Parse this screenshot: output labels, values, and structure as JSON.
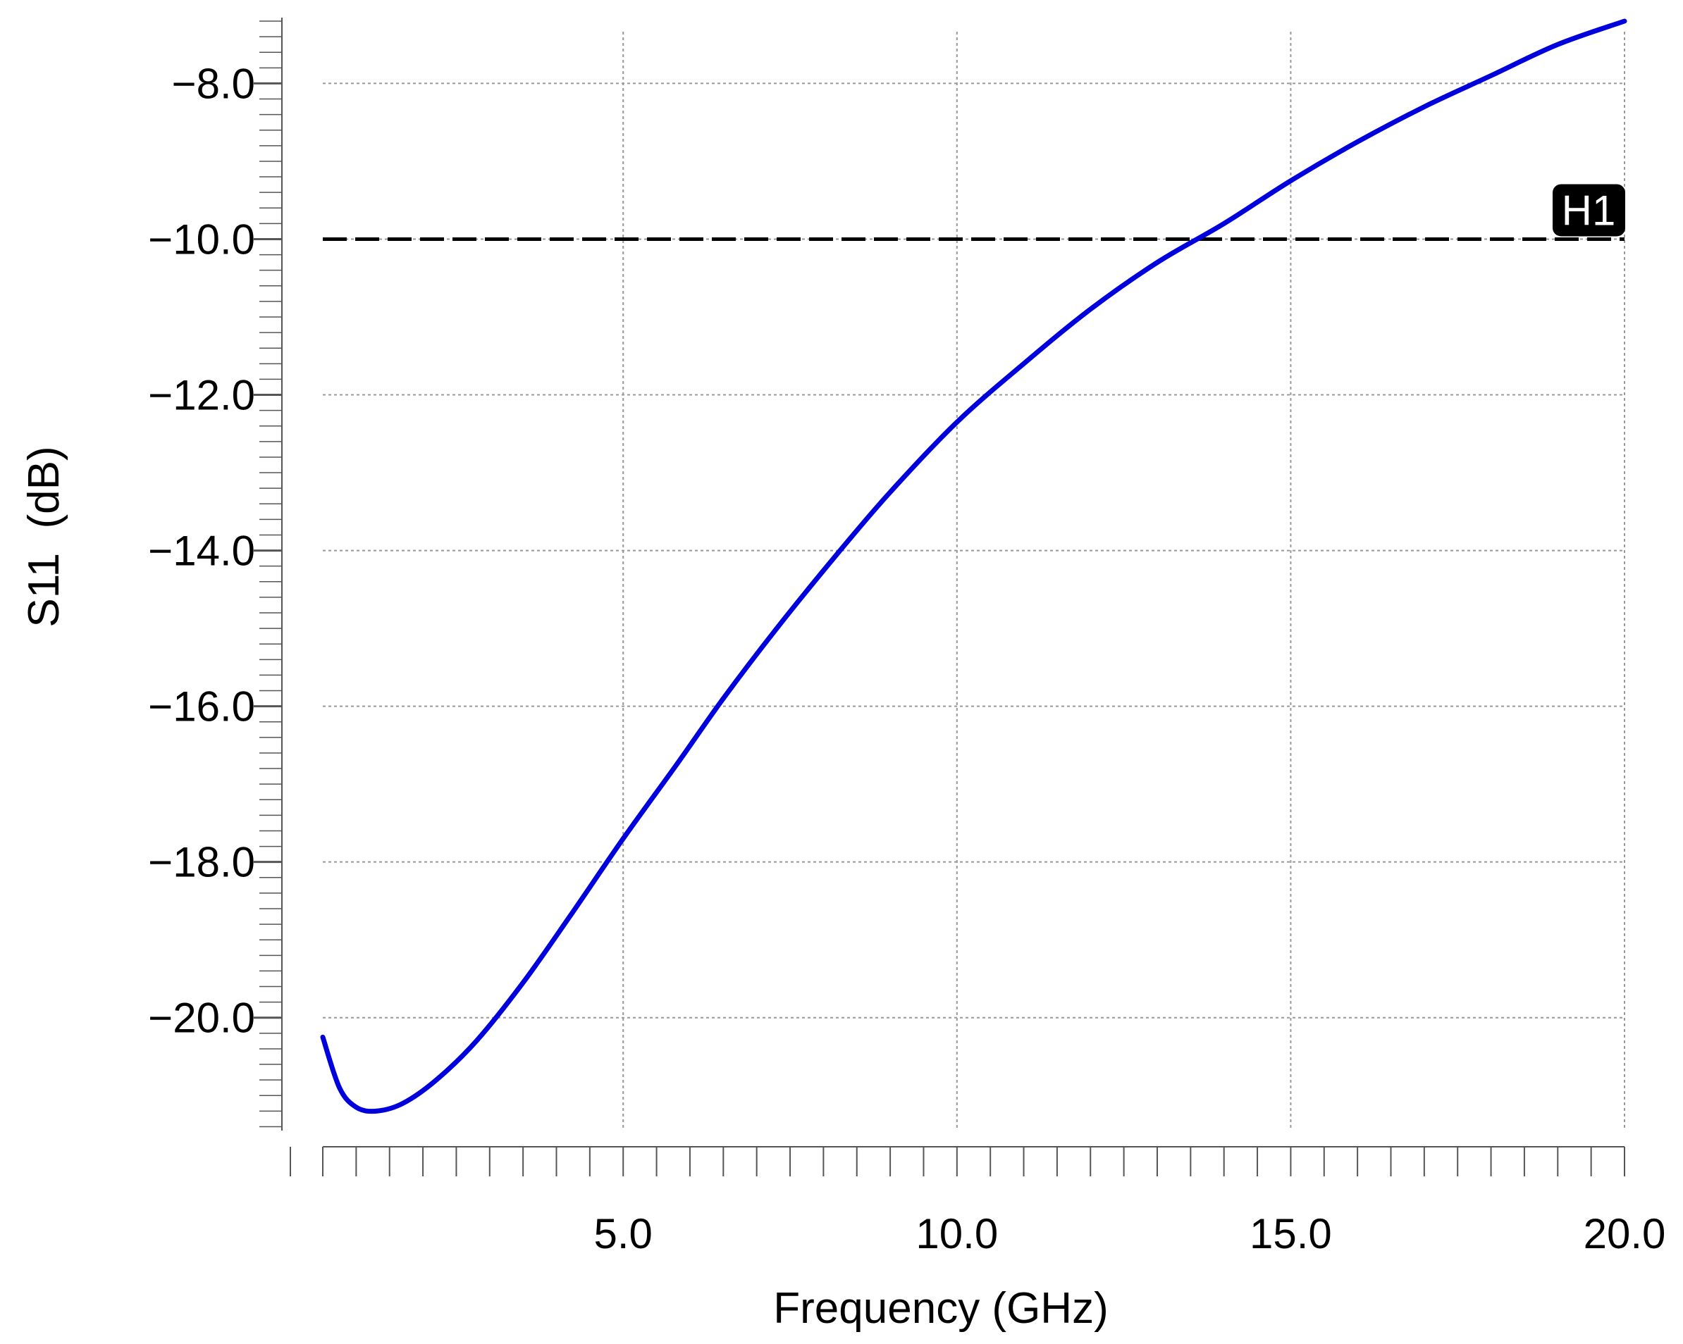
{
  "chart_data": {
    "type": "line",
    "title": "",
    "xlabel": "Frequency (GHz)",
    "ylabel": "S11  (dB)",
    "xlim": [
      0.5,
      20.0
    ],
    "ylim": [
      -21.45,
      -7.2
    ],
    "grid": true,
    "x_ticks": [
      5.0,
      10.0,
      15.0,
      20.0
    ],
    "x_tick_labels": [
      "5.0",
      "10.0",
      "15.0",
      "20.0"
    ],
    "y_ticks": [
      -8.0,
      -10.0,
      -12.0,
      -14.0,
      -16.0,
      -18.0,
      -20.0
    ],
    "y_tick_labels": [
      "−8.0",
      "−10.0",
      "−12.0",
      "−14.0",
      "−16.0",
      "−18.0",
      "−20.0"
    ],
    "series": [
      {
        "color": "#0000dd",
        "x": [
          0.5,
          0.75,
          1.0,
          1.3,
          1.7,
          2.2,
          2.8,
          3.5,
          4.2,
          5.0,
          5.8,
          6.5,
          7.3,
          8.2,
          9.0,
          10.0,
          11.0,
          12.0,
          13.0,
          14.0,
          15.0,
          16.0,
          17.0,
          18.0,
          19.0,
          20.0
        ],
        "y": [
          -20.25,
          -20.9,
          -21.15,
          -21.2,
          -21.1,
          -20.8,
          -20.3,
          -19.55,
          -18.7,
          -17.7,
          -16.75,
          -15.9,
          -15.0,
          -14.05,
          -13.25,
          -12.35,
          -11.6,
          -10.9,
          -10.3,
          -9.8,
          -9.25,
          -8.75,
          -8.3,
          -7.9,
          -7.5,
          -7.2
        ]
      }
    ],
    "reference_lines": [
      {
        "label": "H1",
        "orientation": "horizontal",
        "value": -10.0,
        "style": "dashed",
        "color": "#000000"
      }
    ]
  }
}
